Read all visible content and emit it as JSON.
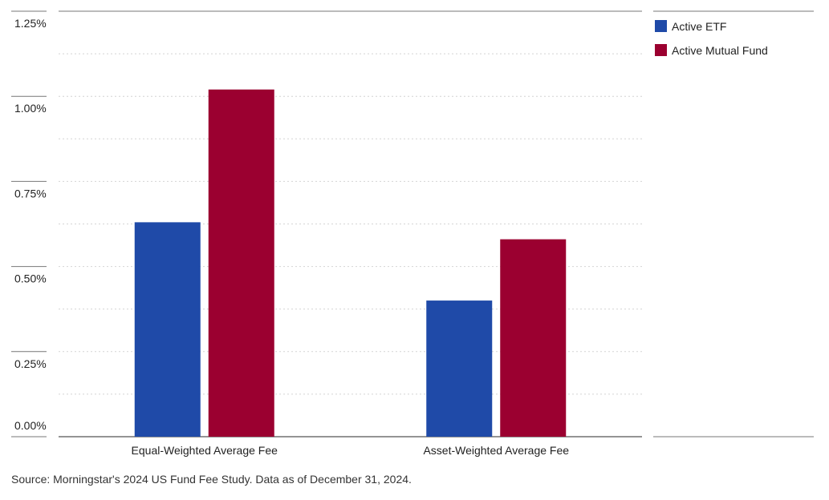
{
  "chart_data": {
    "type": "bar",
    "categories": [
      "Equal-Weighted Average Fee",
      "Asset-Weighted Average Fee"
    ],
    "series": [
      {
        "name": "Active ETF",
        "color": "#1f4aa8",
        "values": [
          0.63,
          0.4
        ]
      },
      {
        "name": "Active Mutual Fund",
        "color": "#9b0030",
        "values": [
          1.02,
          0.58
        ]
      }
    ],
    "ylim": [
      0,
      1.25
    ],
    "yticks": [
      0,
      0.25,
      0.5,
      0.75,
      1.0,
      1.25
    ],
    "ytick_labels": [
      "0.00%",
      "0.25%",
      "0.50%",
      "0.75%",
      "1.00%",
      "1.25%"
    ],
    "grid": true,
    "legend_position": "right"
  },
  "footer": {
    "source": "Source: Morningstar's 2024 US Fund Fee Study. Data as of December 31, 2024."
  }
}
